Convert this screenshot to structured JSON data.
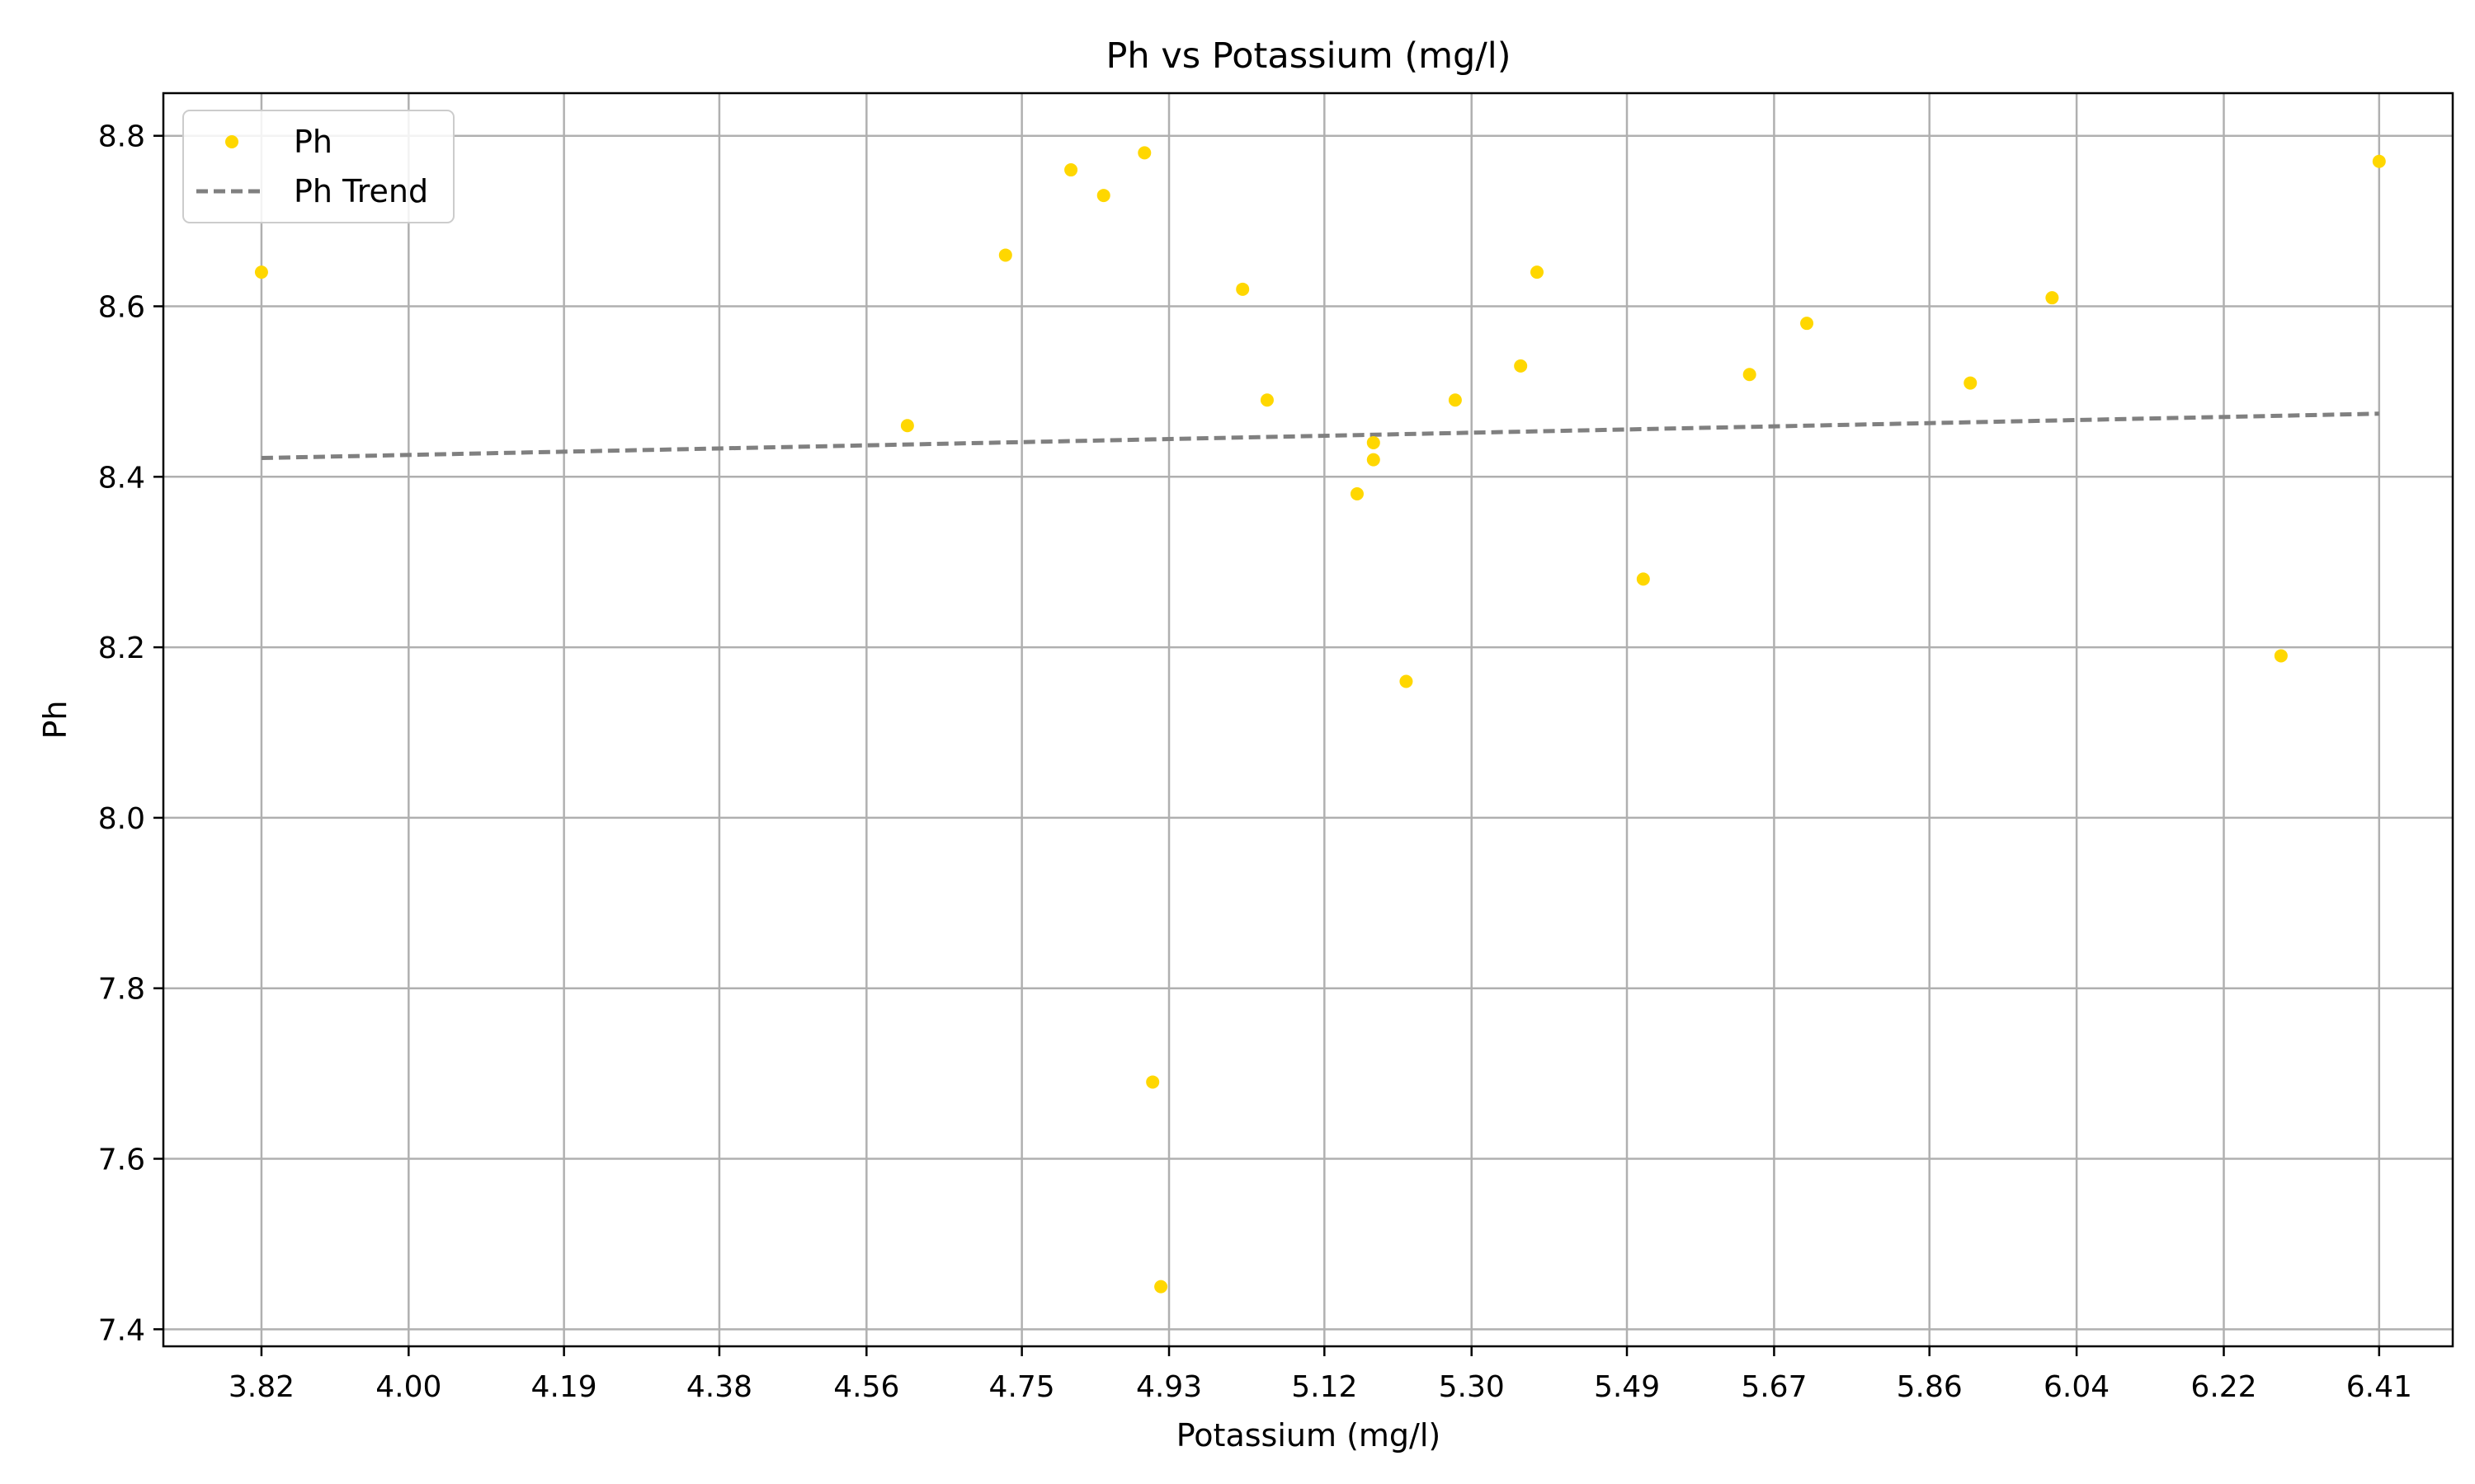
{
  "chart_data": {
    "type": "scatter",
    "title": "Ph vs Potassium (mg/l)",
    "xlabel": "Potassium (mg/l)",
    "ylabel": "Ph",
    "xlim": [
      3.7,
      6.5
    ],
    "ylim": [
      7.38,
      8.85
    ],
    "grid": true,
    "legend_position": "top-left",
    "x_ticks": [
      3.82,
      4.0,
      4.19,
      4.38,
      4.56,
      4.75,
      4.93,
      5.12,
      5.3,
      5.49,
      5.67,
      5.86,
      6.04,
      6.22,
      6.41
    ],
    "x_tick_labels": [
      "3.82",
      "4.00",
      "4.19",
      "4.38",
      "4.56",
      "4.75",
      "4.93",
      "5.12",
      "5.30",
      "5.49",
      "5.67",
      "5.86",
      "6.04",
      "6.22",
      "6.41"
    ],
    "y_ticks": [
      7.4,
      7.6,
      7.8,
      8.0,
      8.2,
      8.4,
      8.6,
      8.8
    ],
    "y_tick_labels": [
      "7.4",
      "7.6",
      "7.8",
      "8.0",
      "8.2",
      "8.4",
      "8.6",
      "8.8"
    ],
    "series": [
      {
        "name": "Ph",
        "kind": "scatter",
        "color": "#FFD700",
        "points": [
          {
            "x": 3.82,
            "y": 8.64
          },
          {
            "x": 4.61,
            "y": 8.46
          },
          {
            "x": 4.73,
            "y": 8.66
          },
          {
            "x": 4.81,
            "y": 8.76
          },
          {
            "x": 4.85,
            "y": 8.73
          },
          {
            "x": 4.9,
            "y": 8.78
          },
          {
            "x": 4.91,
            "y": 7.69
          },
          {
            "x": 4.92,
            "y": 7.45
          },
          {
            "x": 5.02,
            "y": 8.62
          },
          {
            "x": 5.05,
            "y": 8.49
          },
          {
            "x": 5.16,
            "y": 8.38
          },
          {
            "x": 5.18,
            "y": 8.44
          },
          {
            "x": 5.18,
            "y": 8.42
          },
          {
            "x": 5.22,
            "y": 8.16
          },
          {
            "x": 5.28,
            "y": 8.49
          },
          {
            "x": 5.36,
            "y": 8.53
          },
          {
            "x": 5.38,
            "y": 8.64
          },
          {
            "x": 5.51,
            "y": 8.28
          },
          {
            "x": 5.64,
            "y": 8.52
          },
          {
            "x": 5.71,
            "y": 8.58
          },
          {
            "x": 5.91,
            "y": 8.51
          },
          {
            "x": 6.01,
            "y": 8.61
          },
          {
            "x": 6.29,
            "y": 8.19
          },
          {
            "x": 6.41,
            "y": 8.77
          }
        ]
      },
      {
        "name": "Ph Trend",
        "kind": "line",
        "style": "dashed",
        "color": "#808080",
        "points": [
          {
            "x": 3.82,
            "y": 8.422
          },
          {
            "x": 6.41,
            "y": 8.474
          }
        ]
      }
    ]
  }
}
